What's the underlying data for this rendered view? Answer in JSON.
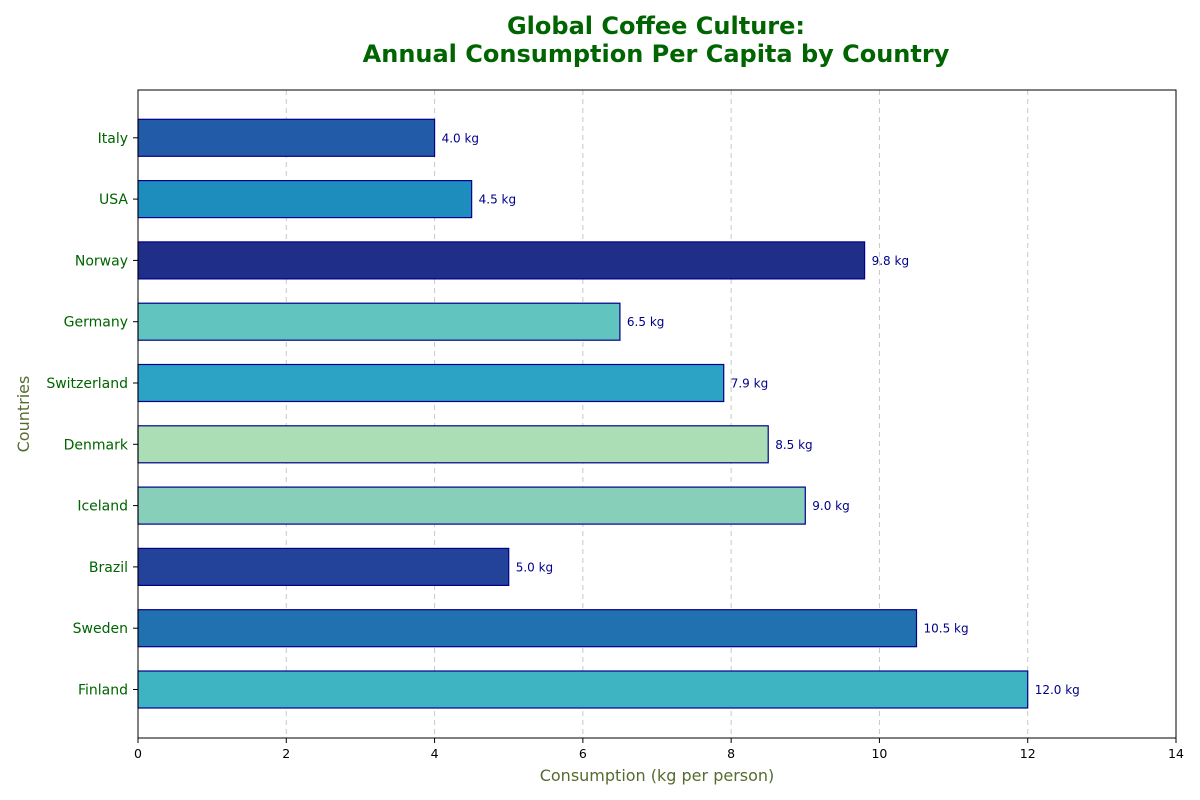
{
  "chart_data": {
    "type": "bar",
    "orientation": "horizontal",
    "title_line1": "Global Coffee Culture:",
    "title_line2": "Annual Consumption Per Capita by Country",
    "xlabel": "Consumption (kg per person)",
    "ylabel": "Countries",
    "xlim": [
      0,
      14
    ],
    "xticks": [
      0,
      2,
      4,
      6,
      8,
      10,
      12,
      14
    ],
    "grid": "x-dashed",
    "categories": [
      "Finland",
      "Sweden",
      "Brazil",
      "Iceland",
      "Denmark",
      "Switzerland",
      "Germany",
      "Norway",
      "USA",
      "Italy"
    ],
    "values": [
      12.0,
      10.5,
      5.0,
      9.0,
      8.5,
      7.9,
      6.5,
      9.8,
      4.5,
      4.0
    ],
    "data_labels": [
      "12.0 kg",
      "10.5 kg",
      "5.0 kg",
      "9.0 kg",
      "8.5 kg",
      "7.9 kg",
      "6.5 kg",
      "9.8 kg",
      "4.5 kg",
      "4.0 kg"
    ],
    "colors": [
      "#3eb3c2",
      "#2171b0",
      "#23429a",
      "#88cfba",
      "#abdeb4",
      "#2ca2c5",
      "#62c4be",
      "#1f2e88",
      "#1d8dbe",
      "#225ba8"
    ],
    "title_color": "#006400",
    "axis_label_color": "#556b2f",
    "tick_label_color": "#006400",
    "data_label_color": "#00008b",
    "bar_edge_color": "#00008b"
  }
}
